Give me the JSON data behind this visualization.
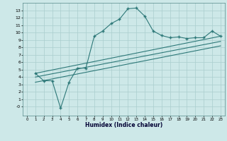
{
  "xlabel": "Humidex (Indice chaleur)",
  "bg_color": "#cde8e8",
  "line_color": "#2d7878",
  "grid_color": "#aacece",
  "xlim": [
    -0.5,
    23.5
  ],
  "ylim": [
    -1.2,
    14.0
  ],
  "xticks": [
    0,
    1,
    2,
    3,
    4,
    5,
    6,
    7,
    8,
    9,
    10,
    11,
    12,
    13,
    14,
    15,
    16,
    17,
    18,
    19,
    20,
    21,
    22,
    23
  ],
  "yticks": [
    0,
    1,
    2,
    3,
    4,
    5,
    6,
    7,
    8,
    9,
    10,
    11,
    12,
    13
  ],
  "ytick_labels": [
    "-0",
    "1",
    "2",
    "3",
    "4",
    "5",
    "6",
    "7",
    "8",
    "9",
    "10",
    "11",
    "12",
    "13"
  ],
  "curve_x": [
    1,
    2,
    3,
    4,
    5,
    6,
    7,
    8,
    9,
    10,
    11,
    12,
    13,
    14,
    15,
    16,
    17,
    18,
    19,
    20,
    21,
    22,
    23
  ],
  "curve_y": [
    4.5,
    3.5,
    3.5,
    -0.2,
    3.3,
    5.2,
    5.2,
    9.5,
    10.2,
    11.2,
    11.8,
    13.2,
    13.3,
    12.2,
    10.2,
    9.6,
    9.3,
    9.4,
    9.2,
    9.3,
    9.3,
    10.2,
    9.5
  ],
  "line1_x": [
    1,
    23
  ],
  "line1_y": [
    4.5,
    9.5
  ],
  "line2_x": [
    1,
    23
  ],
  "line2_y": [
    4.0,
    8.8
  ],
  "line3_x": [
    1,
    23
  ],
  "line3_y": [
    3.3,
    8.2
  ]
}
